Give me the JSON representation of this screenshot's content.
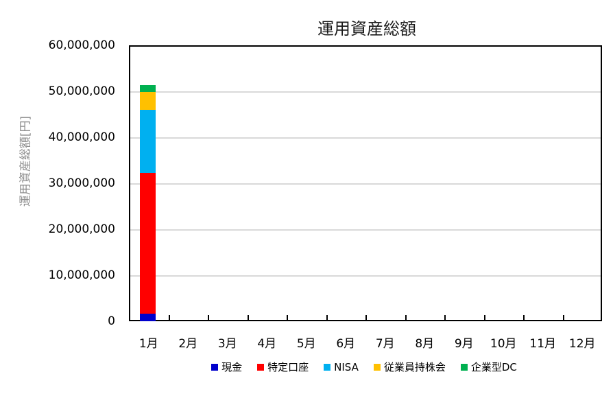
{
  "chart_data": {
    "type": "bar",
    "stacked": true,
    "title": "運用資産総額",
    "xlabel": "",
    "ylabel": "運用資産総額[円]",
    "ylim": [
      0,
      60000000
    ],
    "yticks": [
      "0",
      "10,000,000",
      "20,000,000",
      "30,000,000",
      "40,000,000",
      "50,000,000",
      "60,000,000"
    ],
    "grid": true,
    "legend_position": "bottom",
    "categories": [
      "1月",
      "2月",
      "3月",
      "4月",
      "5月",
      "6月",
      "7月",
      "8月",
      "9月",
      "10月",
      "11月",
      "12月"
    ],
    "series": [
      {
        "name": "現金",
        "color": "#0000CC",
        "values": [
          1700000,
          0,
          0,
          0,
          0,
          0,
          0,
          0,
          0,
          0,
          0,
          0
        ]
      },
      {
        "name": "特定口座",
        "color": "#FF0000",
        "values": [
          30600000,
          0,
          0,
          0,
          0,
          0,
          0,
          0,
          0,
          0,
          0,
          0
        ]
      },
      {
        "name": "NISA",
        "color": "#00B0F0",
        "values": [
          13700000,
          0,
          0,
          0,
          0,
          0,
          0,
          0,
          0,
          0,
          0,
          0
        ]
      },
      {
        "name": "従業員持株会",
        "color": "#FFC000",
        "values": [
          3900000,
          0,
          0,
          0,
          0,
          0,
          0,
          0,
          0,
          0,
          0,
          0
        ]
      },
      {
        "name": "企業型DC",
        "color": "#00B050",
        "values": [
          1450000,
          0,
          0,
          0,
          0,
          0,
          0,
          0,
          0,
          0,
          0,
          0
        ]
      }
    ]
  }
}
